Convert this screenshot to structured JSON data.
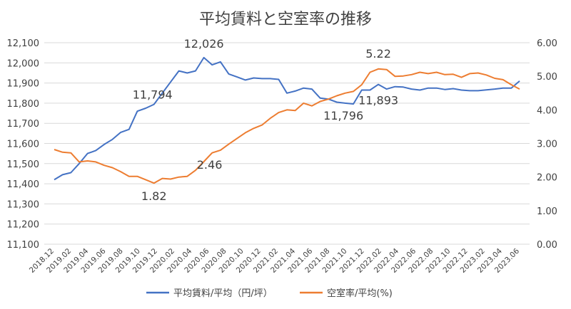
{
  "chart_data": {
    "type": "line",
    "title": "平均賃料と空室率の推移",
    "x_labels": [
      "2018.12",
      "2019.02",
      "2019.04",
      "2019.06",
      "2019.08",
      "2019.10",
      "2019.12",
      "2020.02",
      "2020.04",
      "2020.06",
      "2020.08",
      "2020.10",
      "2020.12",
      "2021.02",
      "2021.04",
      "2021.06",
      "2021.08",
      "2021.10",
      "2021.12",
      "2022.02",
      "2022.04",
      "2022.06",
      "2022.08",
      "2022.10",
      "2022.12",
      "2023.02",
      "2023.04",
      "2023.06"
    ],
    "y_left": {
      "min": 11100,
      "max": 12100,
      "step": 100,
      "ticks": [
        "11,100",
        "11,200",
        "11,300",
        "11,400",
        "11,500",
        "11,600",
        "11,700",
        "11,800",
        "11,900",
        "12,000",
        "12,100"
      ]
    },
    "y_right": {
      "min": 0,
      "max": 6,
      "step": 1,
      "ticks": [
        "0.00",
        "1.00",
        "2.00",
        "3.00",
        "4.00",
        "5.00",
        "6.00"
      ]
    },
    "series": [
      {
        "name": "平均賃料/平均（円/坪）",
        "axis": "left",
        "color": "#4472C4",
        "values": [
          11420,
          11445,
          11455,
          11500,
          11550,
          11565,
          11595,
          11620,
          11655,
          11670,
          11760,
          11775,
          11794,
          11850,
          11905,
          11960,
          11950,
          11960,
          12026,
          11990,
          12005,
          11945,
          11930,
          11915,
          11925,
          11922,
          11922,
          11918,
          11850,
          11860,
          11875,
          11870,
          11825,
          11820,
          11805,
          11800,
          11796,
          11865,
          11865,
          11893,
          11870,
          11882,
          11880,
          11870,
          11865,
          11875,
          11875,
          11868,
          11872,
          11865,
          11862,
          11862,
          11866,
          11870,
          11875,
          11875,
          11910
        ]
      },
      {
        "name": "空室率/平均(%)",
        "axis": "right",
        "color": "#ED7D31",
        "values": [
          2.82,
          2.74,
          2.72,
          2.45,
          2.48,
          2.45,
          2.35,
          2.28,
          2.16,
          2.02,
          2.02,
          1.92,
          1.82,
          1.96,
          1.94,
          2.0,
          2.02,
          2.2,
          2.46,
          2.72,
          2.8,
          2.98,
          3.15,
          3.32,
          3.45,
          3.55,
          3.75,
          3.92,
          4.0,
          3.98,
          4.2,
          4.12,
          4.25,
          4.32,
          4.42,
          4.5,
          4.55,
          4.75,
          5.12,
          5.22,
          5.2,
          5.0,
          5.01,
          5.05,
          5.12,
          5.08,
          5.12,
          5.05,
          5.06,
          4.97,
          5.08,
          5.1,
          5.04,
          4.94,
          4.9,
          4.75,
          4.62
        ]
      }
    ],
    "annotations": [
      {
        "text": "12,026",
        "series": 0,
        "index": 18
      },
      {
        "text": "11,794",
        "series": 0,
        "index": 12
      },
      {
        "text": "11,796",
        "series": 0,
        "index": 36
      },
      {
        "text": "11,893",
        "series": 0,
        "index": 39
      },
      {
        "text": "1.82",
        "series": 1,
        "index": 12
      },
      {
        "text": "2.46",
        "series": 1,
        "index": 18
      },
      {
        "text": "5.22",
        "series": 1,
        "index": 39
      }
    ],
    "grid": true,
    "legend_position": "bottom"
  }
}
